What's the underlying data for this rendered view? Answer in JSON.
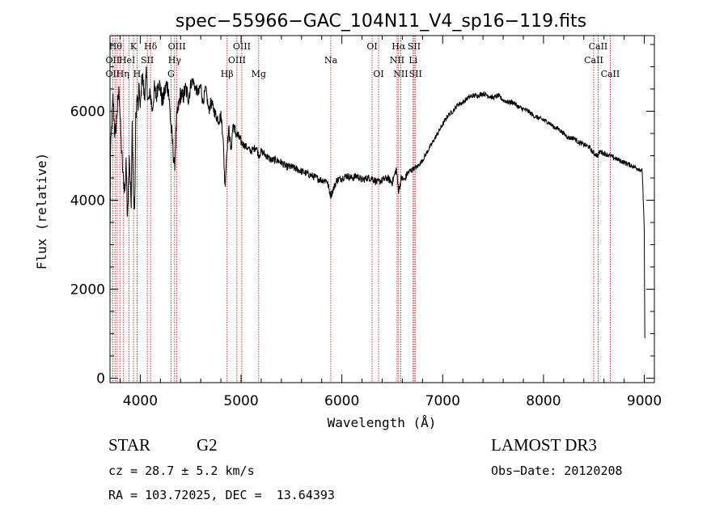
{
  "chart_data": {
    "type": "line",
    "title": "spec−55966−GAC_104N11_V4_sp16−119.fits",
    "xlabel": "Wavelength (Å)",
    "ylabel": "Flux (relative)",
    "xlim": [
      3700,
      9100
    ],
    "ylim": [
      -100,
      7700
    ],
    "xticks": [
      4000,
      5000,
      6000,
      7000,
      8000,
      9000
    ],
    "xtick_labels": [
      "4000",
      "5000",
      "6000",
      "7000",
      "8000",
      "9000"
    ],
    "yticks": [
      0,
      2000,
      4000,
      6000
    ],
    "ytick_labels": [
      "0",
      "2000",
      "4000",
      "6000"
    ],
    "series": [
      {
        "name": "flux",
        "color": "#000000",
        "x": [
          3700,
          3705,
          3715,
          3730,
          3750,
          3770,
          3790,
          3810,
          3830,
          3850,
          3860,
          3870,
          3880,
          3890,
          3900,
          3910,
          3920,
          3933,
          3945,
          3955,
          3968,
          3980,
          3990,
          4000,
          4020,
          4040,
          4060,
          4080,
          4101,
          4120,
          4140,
          4160,
          4180,
          4200,
          4220,
          4240,
          4260,
          4280,
          4300,
          4320,
          4340,
          4360,
          4380,
          4400,
          4420,
          4450,
          4480,
          4500,
          4520,
          4550,
          4580,
          4600,
          4620,
          4650,
          4680,
          4700,
          4720,
          4750,
          4780,
          4800,
          4820,
          4840,
          4861,
          4880,
          4900,
          4920,
          4950,
          4980,
          5000,
          5050,
          5100,
          5150,
          5175,
          5200,
          5250,
          5300,
          5350,
          5400,
          5450,
          5500,
          5550,
          5600,
          5650,
          5700,
          5750,
          5800,
          5850,
          5890,
          5950,
          6000,
          6050,
          6100,
          6150,
          6200,
          6250,
          6300,
          6350,
          6400,
          6450,
          6500,
          6540,
          6563,
          6590,
          6620,
          6650,
          6700,
          6750,
          6800,
          6850,
          6900,
          6950,
          7000,
          7050,
          7100,
          7150,
          7200,
          7250,
          7300,
          7350,
          7400,
          7450,
          7500,
          7550,
          7600,
          7650,
          7700,
          7750,
          7800,
          7850,
          7900,
          7950,
          8000,
          8050,
          8100,
          8150,
          8200,
          8250,
          8300,
          8350,
          8400,
          8450,
          8498,
          8542,
          8560,
          8600,
          8662,
          8700,
          8750,
          8800,
          8850,
          8900,
          8950,
          8980,
          9000,
          9005
        ],
        "y": [
          3100,
          5000,
          5600,
          6300,
          5400,
          6000,
          6500,
          5300,
          4500,
          4200,
          5000,
          3700,
          4100,
          5100,
          4500,
          3800,
          5700,
          4100,
          3700,
          5800,
          6300,
          6100,
          6600,
          6000,
          6900,
          6300,
          6800,
          6200,
          6400,
          6000,
          6500,
          6300,
          6700,
          6500,
          6200,
          6400,
          6600,
          6500,
          5800,
          5300,
          4700,
          5800,
          6100,
          6400,
          6300,
          6500,
          6300,
          6600,
          6700,
          6500,
          6400,
          6600,
          6200,
          6500,
          6000,
          6200,
          6100,
          5900,
          5800,
          5900,
          5500,
          4300,
          5200,
          5600,
          5100,
          5700,
          5500,
          5400,
          5300,
          5200,
          5100,
          5200,
          5000,
          5100,
          5000,
          4900,
          4900,
          4850,
          4750,
          4750,
          4700,
          4650,
          4600,
          4550,
          4500,
          4450,
          4450,
          4100,
          4450,
          4500,
          4550,
          4500,
          4550,
          4450,
          4500,
          4500,
          4400,
          4450,
          4500,
          4400,
          4700,
          4200,
          4500,
          4450,
          4600,
          4700,
          4750,
          4900,
          5100,
          5300,
          5500,
          5700,
          5900,
          6000,
          6150,
          6200,
          6300,
          6350,
          6350,
          6400,
          6350,
          6300,
          6350,
          6250,
          6200,
          6200,
          6100,
          6050,
          6000,
          5900,
          5850,
          5800,
          5750,
          5650,
          5600,
          5500,
          5400,
          5400,
          5300,
          5250,
          5200,
          5050,
          5000,
          5100,
          5050,
          5000,
          4950,
          4900,
          4850,
          4800,
          4750,
          4700,
          4650,
          3300,
          900
        ]
      }
    ],
    "lines": {
      "wavelengths": [
        3727,
        3750,
        3771,
        3798,
        3835,
        3889,
        3933,
        3968,
        4102,
        4070,
        4305,
        4341,
        4363,
        4861,
        4959,
        5007,
        5175,
        5890,
        6300,
        6364,
        6548,
        6563,
        6584,
        6707,
        6717,
        6731,
        8498,
        8542,
        8662
      ],
      "labels": [
        {
          "text": "OII",
          "wl": 3727,
          "row": 3
        },
        {
          "text": "OII",
          "wl": 3727,
          "row": 2
        },
        {
          "text": "Hθ",
          "wl": 3755,
          "row": 1
        },
        {
          "text": "Hη",
          "wl": 3826,
          "row": 3
        },
        {
          "text": "HeI",
          "wl": 3870,
          "row": 2
        },
        {
          "text": "K",
          "wl": 3933,
          "row": 1
        },
        {
          "text": "H",
          "wl": 3968,
          "row": 3
        },
        {
          "text": "SII",
          "wl": 4070,
          "row": 2
        },
        {
          "text": "Hδ",
          "wl": 4102,
          "row": 1
        },
        {
          "text": "G",
          "wl": 4305,
          "row": 3
        },
        {
          "text": "Hγ",
          "wl": 4341,
          "row": 2
        },
        {
          "text": "OIII",
          "wl": 4363,
          "row": 1
        },
        {
          "text": "Hβ",
          "wl": 4861,
          "row": 3
        },
        {
          "text": "OIII",
          "wl": 4959,
          "row": 2
        },
        {
          "text": "OIII",
          "wl": 5007,
          "row": 1
        },
        {
          "text": "Mg",
          "wl": 5175,
          "row": 3
        },
        {
          "text": "Na",
          "wl": 5890,
          "row": 2
        },
        {
          "text": "OI",
          "wl": 6300,
          "row": 1
        },
        {
          "text": "OI",
          "wl": 6364,
          "row": 3
        },
        {
          "text": "Hα",
          "wl": 6563,
          "row": 1
        },
        {
          "text": "NII",
          "wl": 6548,
          "row": 2
        },
        {
          "text": "NII",
          "wl": 6584,
          "row": 3
        },
        {
          "text": "SII",
          "wl": 6717,
          "row": 1
        },
        {
          "text": "Li",
          "wl": 6707,
          "row": 2
        },
        {
          "text": "SII",
          "wl": 6731,
          "row": 3
        },
        {
          "text": "CaII",
          "wl": 8498,
          "row": 2
        },
        {
          "text": "CaII",
          "wl": 8542,
          "row": 1
        },
        {
          "text": "CaII",
          "wl": 8662,
          "row": 3
        }
      ]
    },
    "colors": {
      "spectrum": "#000000",
      "lines": "#cc0000",
      "axes": "#000000"
    }
  },
  "footer": {
    "object_type": "STAR",
    "subclass": "G2",
    "survey": "LAMOST DR3",
    "cz": "cz = 28.7 ± 5.2 km/s",
    "obs_date": "Obs−Date: 20120208",
    "coords": "RA = 103.72025, DEC =  13.64393"
  }
}
